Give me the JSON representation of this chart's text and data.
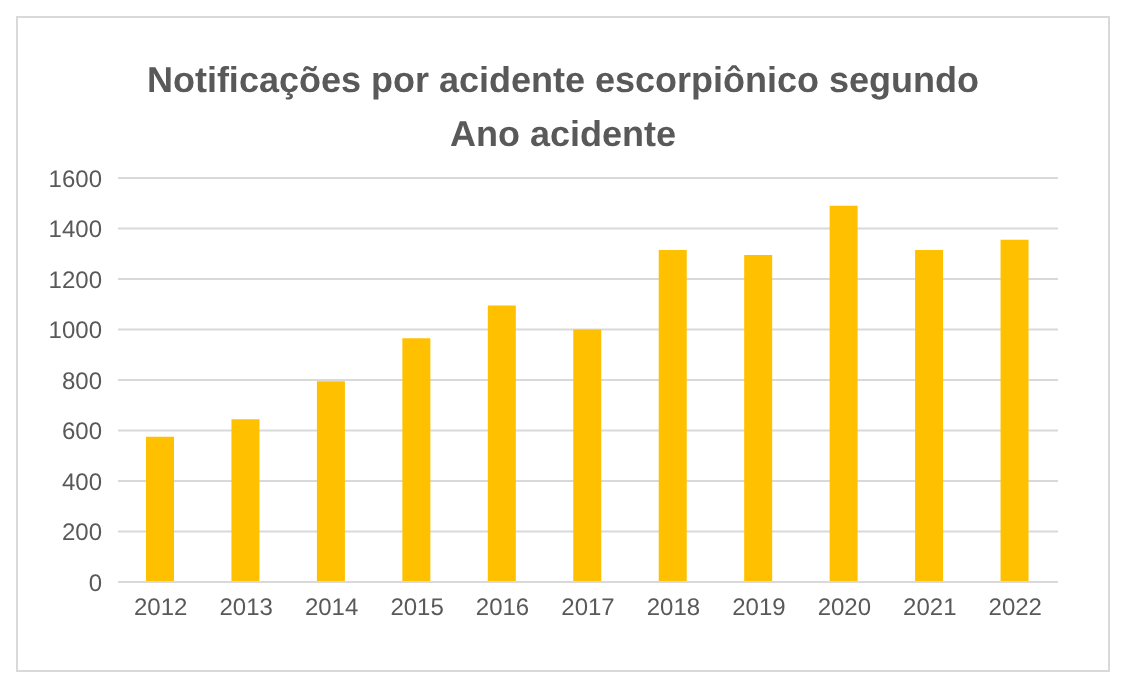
{
  "chart_data": {
    "type": "bar",
    "title": "Notificações por acidente escorpiônico segundo Ano acidente",
    "categories": [
      "2012",
      "2013",
      "2014",
      "2015",
      "2016",
      "2017",
      "2018",
      "2019",
      "2020",
      "2021",
      "2022"
    ],
    "values": [
      575,
      645,
      795,
      965,
      1095,
      1000,
      1315,
      1295,
      1490,
      1315,
      1355
    ],
    "color": "#ffc000",
    "ylim": [
      0,
      1600
    ],
    "yticks": [
      0,
      200,
      400,
      600,
      800,
      1000,
      1200,
      1400,
      1600
    ],
    "grid": "y"
  }
}
